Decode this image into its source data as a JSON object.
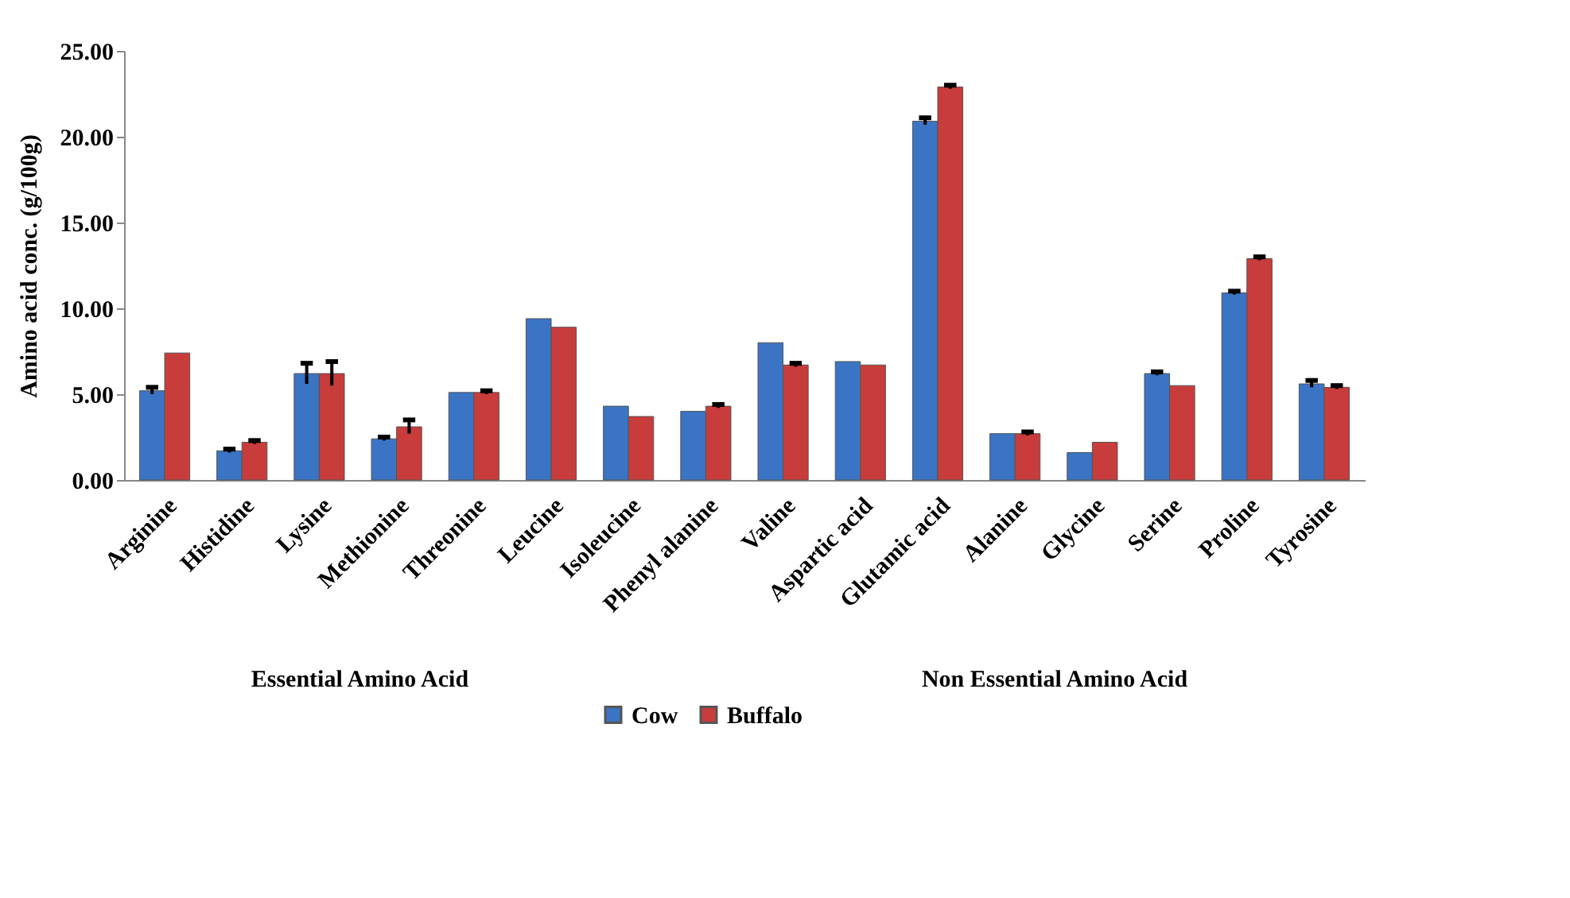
{
  "chart_data": {
    "type": "bar",
    "ylabel": "Amino acid  conc. (g/100g)",
    "categories": [
      "Arginine",
      "Histidine",
      "Lysine",
      "Methionine",
      "Threonine",
      "Leucine",
      "Isoleucine",
      "Phenyl alanine",
      "Valine",
      "Aspartic acid",
      "Glutamic acid",
      "Alanine",
      "Glycine",
      "Serine",
      "Proline",
      "Tyrosine"
    ],
    "series": [
      {
        "name": "Cow",
        "color": "#3b74c4",
        "values": [
          5.2,
          1.7,
          6.2,
          2.4,
          5.1,
          9.4,
          4.3,
          4.0,
          8.0,
          6.9,
          20.9,
          2.7,
          1.6,
          6.2,
          10.9,
          5.6
        ],
        "errors": [
          0.2,
          0.1,
          0.6,
          0.1,
          null,
          null,
          null,
          null,
          null,
          null,
          0.2,
          null,
          null,
          0.1,
          0.1,
          0.2
        ]
      },
      {
        "name": "Buffalo",
        "color": "#c83c3c",
        "values": [
          7.4,
          2.2,
          6.2,
          3.1,
          5.1,
          8.9,
          3.7,
          4.3,
          6.7,
          6.7,
          22.9,
          2.7,
          2.2,
          5.5,
          12.9,
          5.4
        ],
        "errors": [
          null,
          0.1,
          0.7,
          0.4,
          0.1,
          null,
          null,
          0.1,
          0.1,
          null,
          0.1,
          0.1,
          null,
          null,
          0.1,
          0.1
        ]
      }
    ],
    "ylim": [
      0,
      25
    ],
    "yticks": [
      {
        "value": 0,
        "label": "0.00"
      },
      {
        "value": 5,
        "label": "5.00"
      },
      {
        "value": 10,
        "label": "10.00"
      },
      {
        "value": 15,
        "label": "15.00"
      },
      {
        "value": 20,
        "label": "20.00"
      },
      {
        "value": 25,
        "label": "25.00"
      }
    ],
    "annotations": [
      "Essential Amino Acid",
      "Non Essential Amino Acid"
    ],
    "legend": "bottom",
    "grid": false
  }
}
